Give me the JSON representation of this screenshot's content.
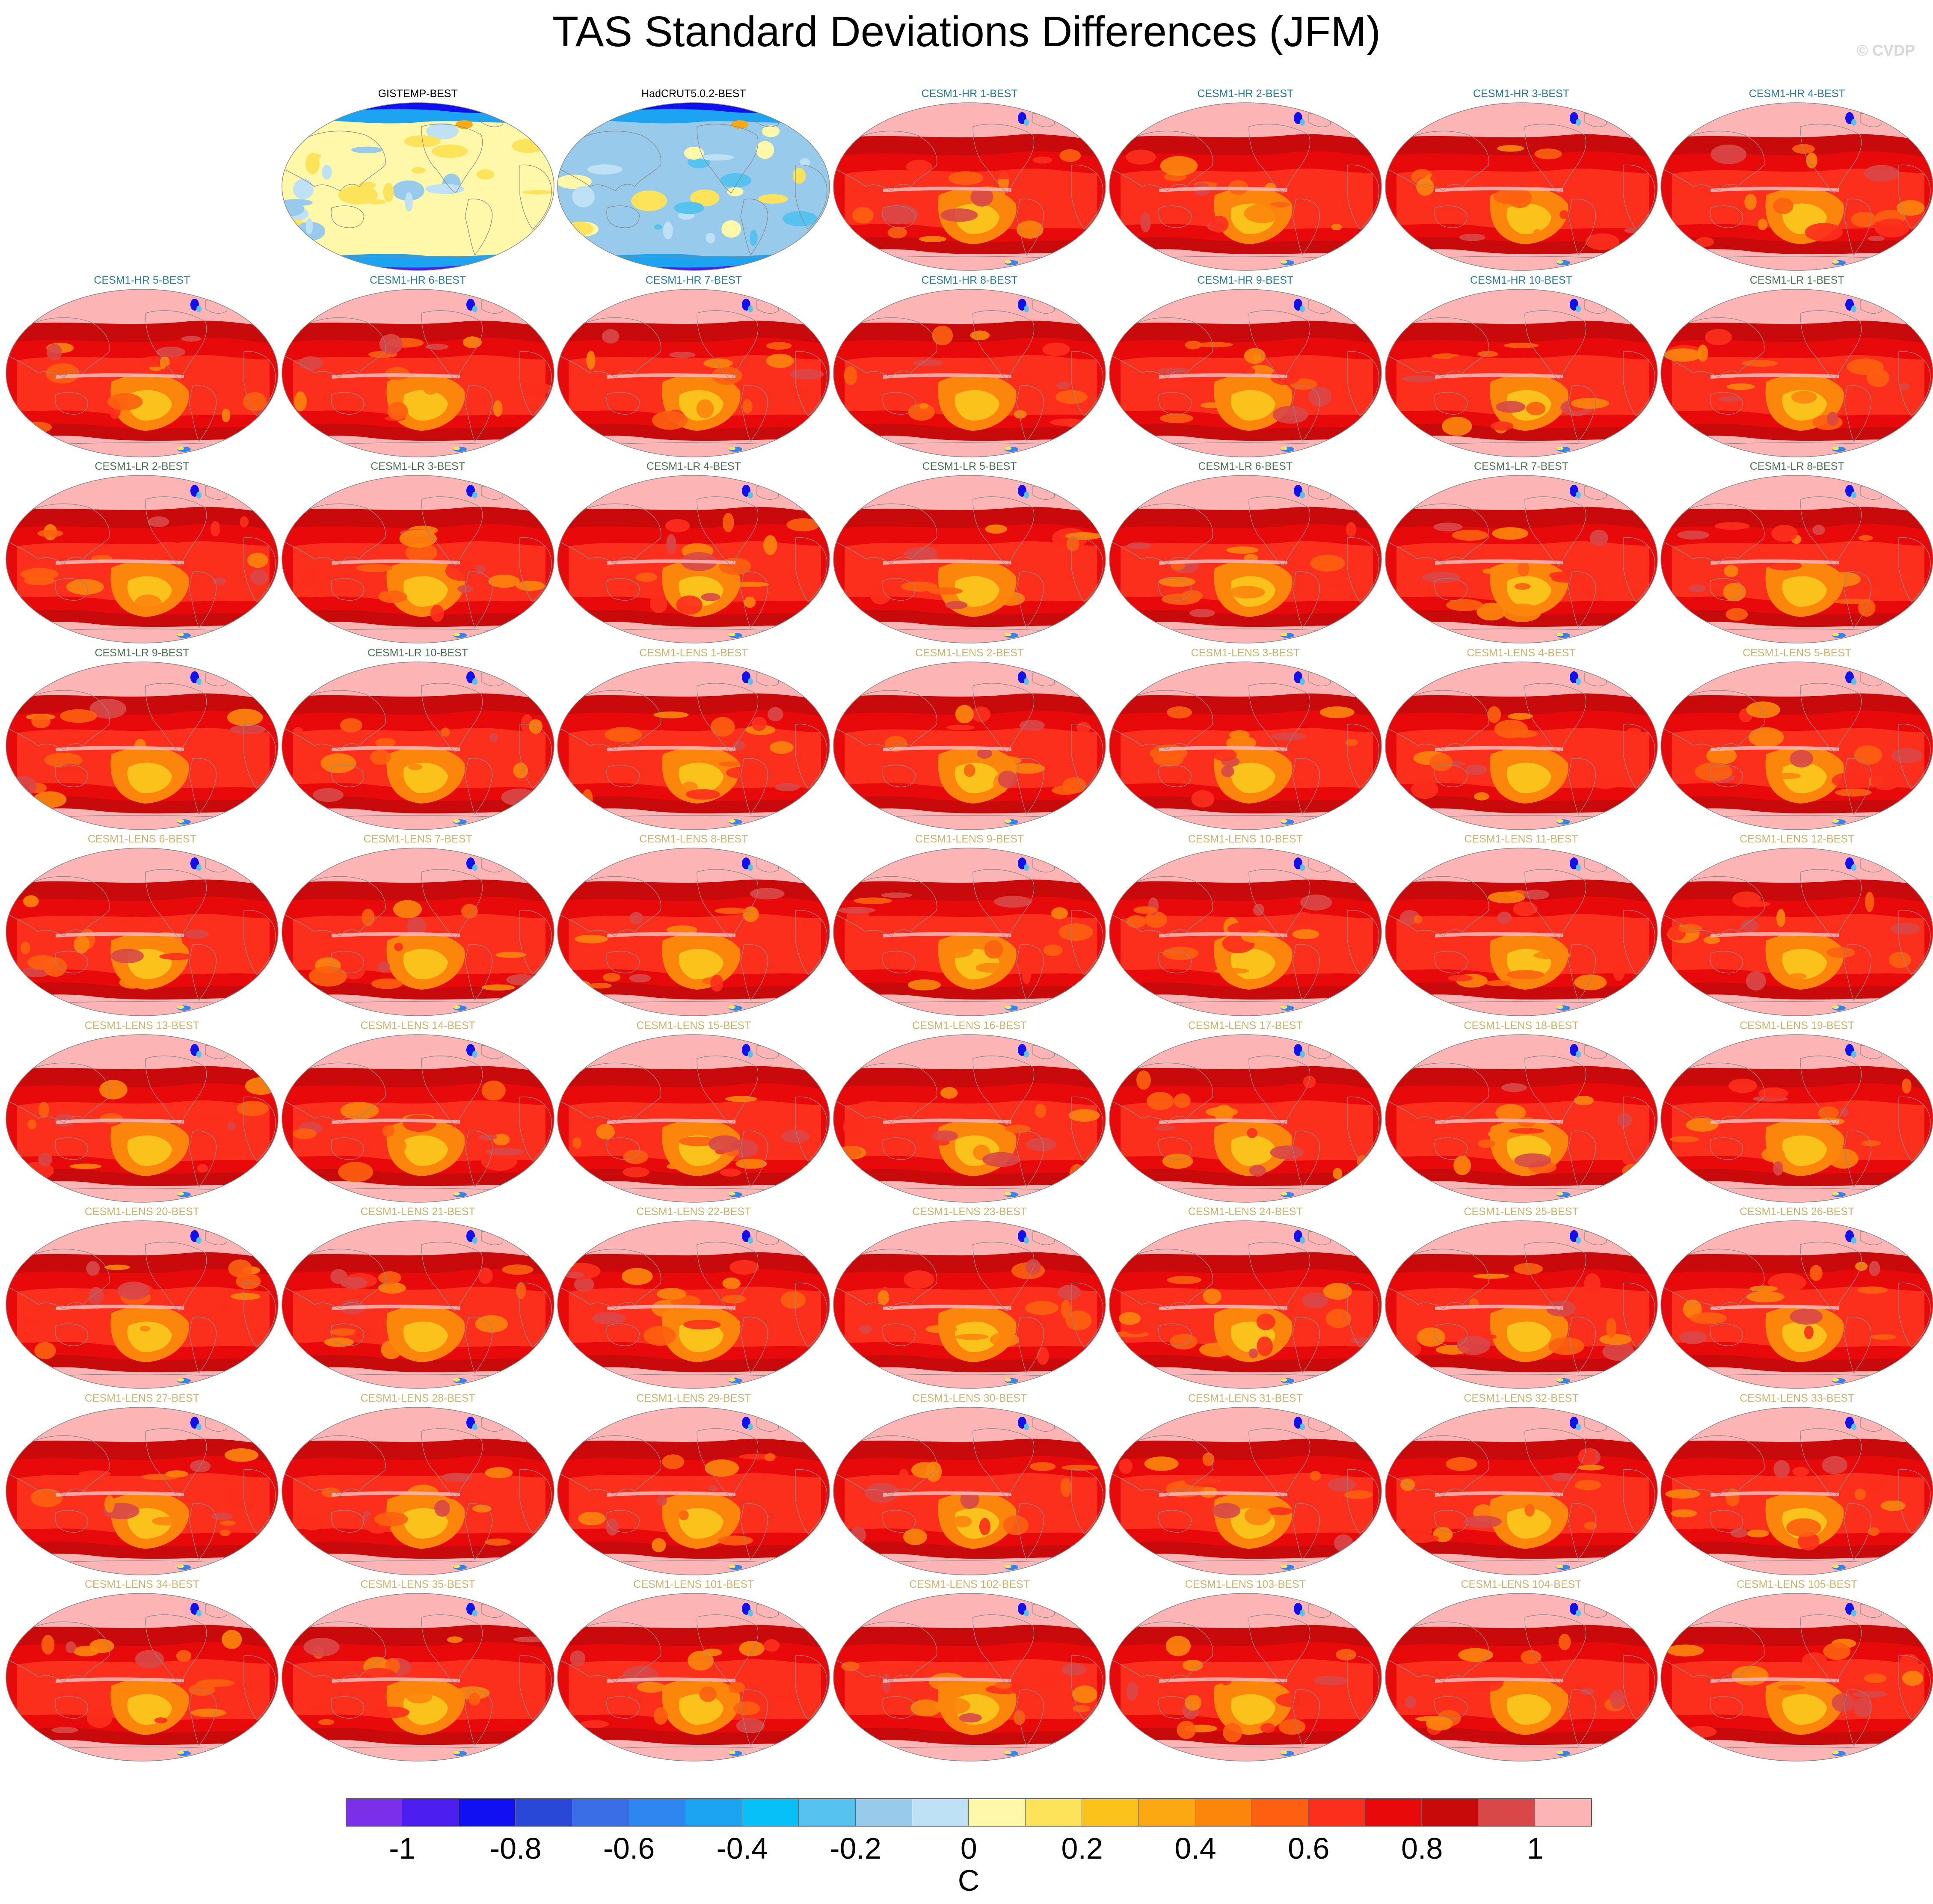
{
  "title": "TAS Standard Deviations Differences (JFM)",
  "watermark": "© CVDP",
  "panel_label_colors": {
    "obs": "#000000",
    "CESM1-HR": "#2a7a96",
    "CESM1-LR": "#4a6f55",
    "CESM1-LENS": "#c9b370"
  },
  "panels": [
    {
      "label": "GISTEMP-BEST",
      "group": "obs",
      "style": "obs1"
    },
    {
      "label": "HadCRUT5.0.2-BEST",
      "group": "obs",
      "style": "obs2"
    },
    {
      "label": "CESM1-HR 1-BEST",
      "group": "CESM1-HR",
      "style": "model"
    },
    {
      "label": "CESM1-HR 2-BEST",
      "group": "CESM1-HR",
      "style": "model"
    },
    {
      "label": "CESM1-HR 3-BEST",
      "group": "CESM1-HR",
      "style": "model"
    },
    {
      "label": "CESM1-HR 4-BEST",
      "group": "CESM1-HR",
      "style": "model"
    },
    {
      "label": "CESM1-HR 5-BEST",
      "group": "CESM1-HR",
      "style": "model"
    },
    {
      "label": "CESM1-HR 6-BEST",
      "group": "CESM1-HR",
      "style": "model"
    },
    {
      "label": "CESM1-HR 7-BEST",
      "group": "CESM1-HR",
      "style": "model"
    },
    {
      "label": "CESM1-HR 8-BEST",
      "group": "CESM1-HR",
      "style": "model"
    },
    {
      "label": "CESM1-HR 9-BEST",
      "group": "CESM1-HR",
      "style": "model"
    },
    {
      "label": "CESM1-HR 10-BEST",
      "group": "CESM1-HR",
      "style": "model"
    },
    {
      "label": "CESM1-LR 1-BEST",
      "group": "CESM1-LR",
      "style": "model"
    },
    {
      "label": "CESM1-LR 2-BEST",
      "group": "CESM1-LR",
      "style": "model"
    },
    {
      "label": "CESM1-LR 3-BEST",
      "group": "CESM1-LR",
      "style": "model"
    },
    {
      "label": "CESM1-LR 4-BEST",
      "group": "CESM1-LR",
      "style": "model"
    },
    {
      "label": "CESM1-LR 5-BEST",
      "group": "CESM1-LR",
      "style": "model"
    },
    {
      "label": "CESM1-LR 6-BEST",
      "group": "CESM1-LR",
      "style": "model"
    },
    {
      "label": "CESM1-LR 7-BEST",
      "group": "CESM1-LR",
      "style": "model"
    },
    {
      "label": "CESM1-LR 8-BEST",
      "group": "CESM1-LR",
      "style": "model"
    },
    {
      "label": "CESM1-LR 9-BEST",
      "group": "CESM1-LR",
      "style": "model"
    },
    {
      "label": "CESM1-LR 10-BEST",
      "group": "CESM1-LR",
      "style": "model"
    },
    {
      "label": "CESM1-LENS 1-BEST",
      "group": "CESM1-LENS",
      "style": "model"
    },
    {
      "label": "CESM1-LENS 2-BEST",
      "group": "CESM1-LENS",
      "style": "model"
    },
    {
      "label": "CESM1-LENS 3-BEST",
      "group": "CESM1-LENS",
      "style": "model"
    },
    {
      "label": "CESM1-LENS 4-BEST",
      "group": "CESM1-LENS",
      "style": "model"
    },
    {
      "label": "CESM1-LENS 5-BEST",
      "group": "CESM1-LENS",
      "style": "model"
    },
    {
      "label": "CESM1-LENS 6-BEST",
      "group": "CESM1-LENS",
      "style": "model"
    },
    {
      "label": "CESM1-LENS 7-BEST",
      "group": "CESM1-LENS",
      "style": "model"
    },
    {
      "label": "CESM1-LENS 8-BEST",
      "group": "CESM1-LENS",
      "style": "model"
    },
    {
      "label": "CESM1-LENS 9-BEST",
      "group": "CESM1-LENS",
      "style": "model"
    },
    {
      "label": "CESM1-LENS 10-BEST",
      "group": "CESM1-LENS",
      "style": "model"
    },
    {
      "label": "CESM1-LENS 11-BEST",
      "group": "CESM1-LENS",
      "style": "model"
    },
    {
      "label": "CESM1-LENS 12-BEST",
      "group": "CESM1-LENS",
      "style": "model"
    },
    {
      "label": "CESM1-LENS 13-BEST",
      "group": "CESM1-LENS",
      "style": "model"
    },
    {
      "label": "CESM1-LENS 14-BEST",
      "group": "CESM1-LENS",
      "style": "model"
    },
    {
      "label": "CESM1-LENS 15-BEST",
      "group": "CESM1-LENS",
      "style": "model"
    },
    {
      "label": "CESM1-LENS 16-BEST",
      "group": "CESM1-LENS",
      "style": "model"
    },
    {
      "label": "CESM1-LENS 17-BEST",
      "group": "CESM1-LENS",
      "style": "model"
    },
    {
      "label": "CESM1-LENS 18-BEST",
      "group": "CESM1-LENS",
      "style": "model"
    },
    {
      "label": "CESM1-LENS 19-BEST",
      "group": "CESM1-LENS",
      "style": "model"
    },
    {
      "label": "CESM1-LENS 20-BEST",
      "group": "CESM1-LENS",
      "style": "model"
    },
    {
      "label": "CESM1-LENS 21-BEST",
      "group": "CESM1-LENS",
      "style": "model"
    },
    {
      "label": "CESM1-LENS 22-BEST",
      "group": "CESM1-LENS",
      "style": "model"
    },
    {
      "label": "CESM1-LENS 23-BEST",
      "group": "CESM1-LENS",
      "style": "model"
    },
    {
      "label": "CESM1-LENS 24-BEST",
      "group": "CESM1-LENS",
      "style": "model"
    },
    {
      "label": "CESM1-LENS 25-BEST",
      "group": "CESM1-LENS",
      "style": "model"
    },
    {
      "label": "CESM1-LENS 26-BEST",
      "group": "CESM1-LENS",
      "style": "model"
    },
    {
      "label": "CESM1-LENS 27-BEST",
      "group": "CESM1-LENS",
      "style": "model"
    },
    {
      "label": "CESM1-LENS 28-BEST",
      "group": "CESM1-LENS",
      "style": "model"
    },
    {
      "label": "CESM1-LENS 29-BEST",
      "group": "CESM1-LENS",
      "style": "model"
    },
    {
      "label": "CESM1-LENS 30-BEST",
      "group": "CESM1-LENS",
      "style": "model"
    },
    {
      "label": "CESM1-LENS 31-BEST",
      "group": "CESM1-LENS",
      "style": "model"
    },
    {
      "label": "CESM1-LENS 32-BEST",
      "group": "CESM1-LENS",
      "style": "model"
    },
    {
      "label": "CESM1-LENS 33-BEST",
      "group": "CESM1-LENS",
      "style": "model"
    },
    {
      "label": "CESM1-LENS 34-BEST",
      "group": "CESM1-LENS",
      "style": "model"
    },
    {
      "label": "CESM1-LENS 35-BEST",
      "group": "CESM1-LENS",
      "style": "model"
    },
    {
      "label": "CESM1-LENS 101-BEST",
      "group": "CESM1-LENS",
      "style": "model"
    },
    {
      "label": "CESM1-LENS 102-BEST",
      "group": "CESM1-LENS",
      "style": "model"
    },
    {
      "label": "CESM1-LENS 103-BEST",
      "group": "CESM1-LENS",
      "style": "model"
    },
    {
      "label": "CESM1-LENS 104-BEST",
      "group": "CESM1-LENS",
      "style": "model"
    },
    {
      "label": "CESM1-LENS 105-BEST",
      "group": "CESM1-LENS",
      "style": "model"
    }
  ],
  "colorbar": {
    "unit": "C",
    "colors": [
      "#7b2fe8",
      "#4c1ff0",
      "#1010f0",
      "#2a48d8",
      "#3a6ee6",
      "#2f86f0",
      "#1ca4f2",
      "#08c0f8",
      "#56c2f0",
      "#98cbeb",
      "#bfe1f5",
      "#fff8a8",
      "#fde35a",
      "#fcc21c",
      "#fca812",
      "#fc860c",
      "#fc6010",
      "#fc2f1c",
      "#e80a0a",
      "#c80a0a",
      "#d84848",
      "#fcb4b4"
    ],
    "ticks": [
      {
        "label": "-1",
        "index": 1
      },
      {
        "label": "-0.8",
        "index": 3
      },
      {
        "label": "-0.6",
        "index": 5
      },
      {
        "label": "-0.4",
        "index": 7
      },
      {
        "label": "-0.2",
        "index": 9
      },
      {
        "label": "0",
        "index": 11
      },
      {
        "label": "0.2",
        "index": 13
      },
      {
        "label": "0.4",
        "index": 15
      },
      {
        "label": "0.6",
        "index": 17
      },
      {
        "label": "0.8",
        "index": 19
      },
      {
        "label": "1",
        "index": 21
      }
    ]
  }
}
